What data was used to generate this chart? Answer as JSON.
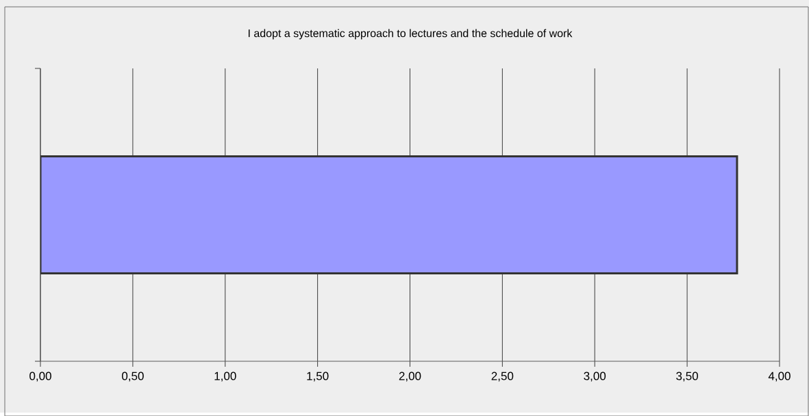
{
  "chart_data": {
    "type": "bar",
    "orientation": "horizontal",
    "title": "I adopt a systematic approach to lectures and the schedule of work",
    "categories": [
      null
    ],
    "values": [
      3.77
    ],
    "color": "#9999ff",
    "xlim": [
      0,
      4
    ],
    "xticks": [
      {
        "value": 0,
        "label": "0,00"
      },
      {
        "value": 0.5,
        "label": "0,50"
      },
      {
        "value": 1,
        "label": "1,00"
      },
      {
        "value": 1.5,
        "label": "1,50"
      },
      {
        "value": 2,
        "label": "2,00"
      },
      {
        "value": 2.5,
        "label": "2,50"
      },
      {
        "value": 3,
        "label": "3,00"
      },
      {
        "value": 3.5,
        "label": "3,50"
      },
      {
        "value": 4,
        "label": "4,00"
      }
    ],
    "grid": "x",
    "tick_labels": "x"
  }
}
